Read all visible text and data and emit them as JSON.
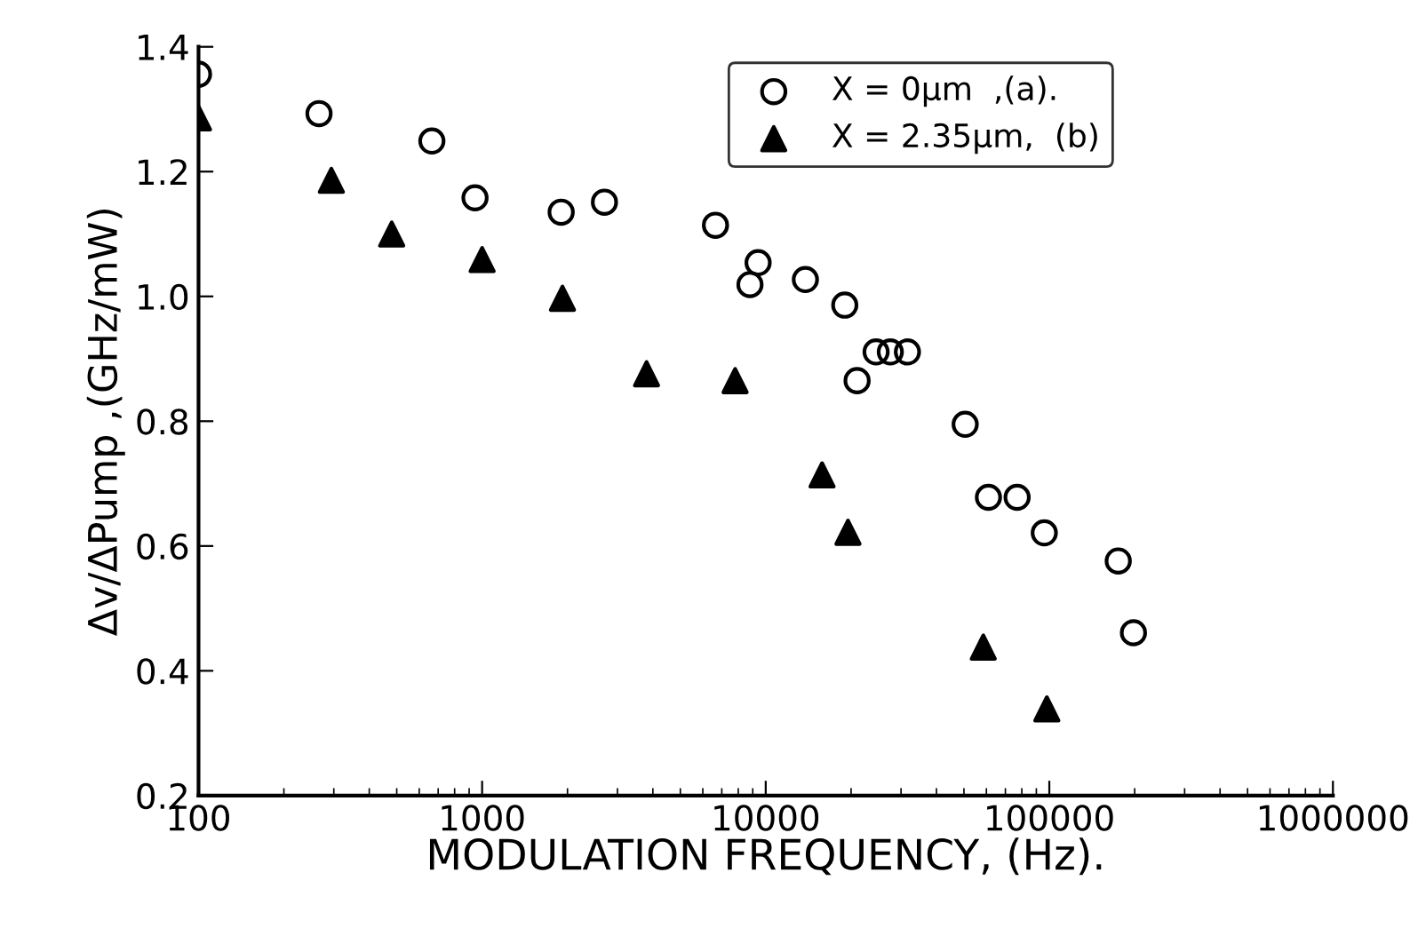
{
  "chart_data": {
    "type": "scatter",
    "xlabel": "MODULATION FREQUENCY, (Hz).",
    "ylabel": "Δv/ΔPump ,(GHz/mW)",
    "log": "x",
    "xlim": [
      100,
      1000000
    ],
    "xticks": [
      100,
      1000,
      10000,
      100000,
      1000000
    ],
    "ylim": [
      0.2,
      1.4
    ],
    "yticks": [
      0.2,
      0.4,
      0.6,
      0.8,
      {
        "value": 1,
        "label": "1.0"
      },
      1.2,
      1.4
    ],
    "grid": false,
    "legend": "top right",
    "series": [
      {
        "name": "X = 0µm  ,(a).",
        "color": "#000000",
        "marker": "circle",
        "x": [
          100,
          266,
          665,
          944,
          1900,
          2700,
          6650,
          8800,
          9400,
          13800,
          19000,
          21000,
          24500,
          27500,
          31600,
          50500,
          61000,
          77000,
          96000,
          175000,
          198000
        ],
        "values": [
          1.356,
          1.293,
          1.249,
          1.158,
          1.135,
          1.151,
          1.114,
          1.019,
          1.054,
          1.027,
          0.986,
          0.865,
          0.911,
          0.911,
          0.911,
          0.795,
          0.678,
          0.678,
          0.621,
          0.576,
          0.461
        ]
      },
      {
        "name": "X = 2.35µm,  (b)",
        "color": "#000000",
        "marker": "triangle",
        "x": [
          100,
          294,
          480,
          1000,
          1920,
          3800,
          7800,
          15800,
          19500,
          58500,
          98000
        ],
        "values": [
          1.286,
          1.186,
          1.1,
          1.059,
          0.997,
          0.876,
          0.865,
          0.714,
          0.622,
          0.438,
          0.339
        ]
      }
    ]
  }
}
